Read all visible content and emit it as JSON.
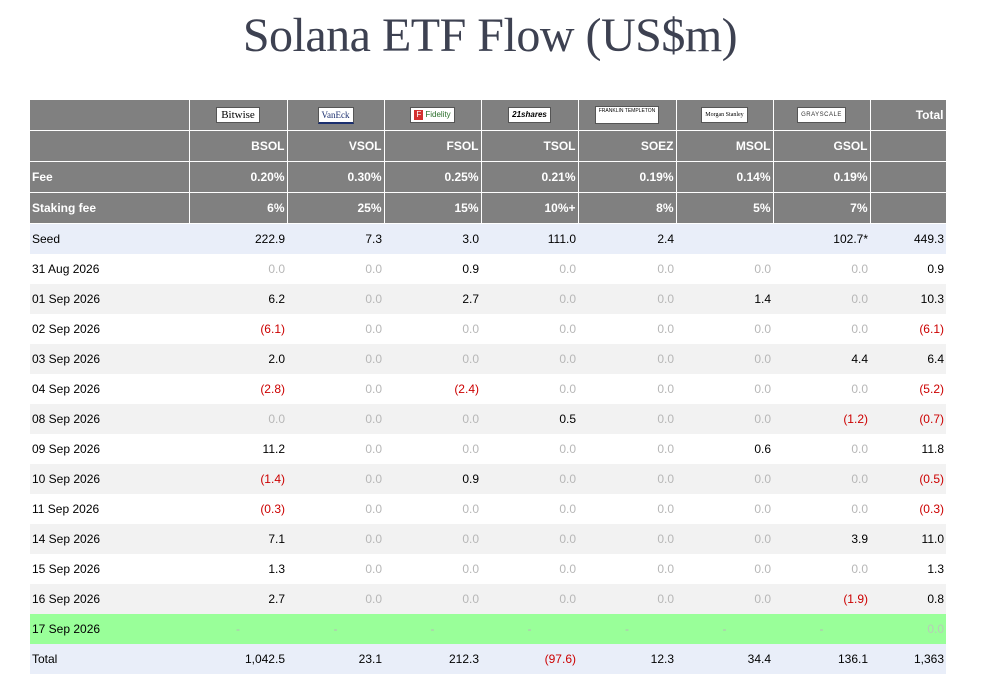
{
  "title": "Solana ETF Flow (US$m)",
  "chart_data": {
    "type": "table",
    "funds": [
      {
        "issuer": "Bitwise",
        "ticker": "BSOL",
        "fee": "0.20%",
        "staking_fee": "6%"
      },
      {
        "issuer": "VanEck",
        "ticker": "VSOL",
        "fee": "0.30%",
        "staking_fee": "25%"
      },
      {
        "issuer": "Fidelity",
        "ticker": "FSOL",
        "fee": "0.25%",
        "staking_fee": "15%"
      },
      {
        "issuer": "21shares",
        "ticker": "TSOL",
        "fee": "0.21%",
        "staking_fee": "10%+"
      },
      {
        "issuer": "FRANKLIN TEMPLETON",
        "ticker": "SOEZ",
        "fee": "0.19%",
        "staking_fee": "8%"
      },
      {
        "issuer": "Morgan Stanley",
        "ticker": "MSOL",
        "fee": "0.14%",
        "staking_fee": "5%"
      },
      {
        "issuer": "GRAYSCALE",
        "ticker": "GSOL",
        "fee": "0.19%",
        "staking_fee": "7%"
      }
    ],
    "total_header": "Total",
    "fee_label": "Fee",
    "staking_fee_label": "Staking fee",
    "rows": [
      {
        "label": "Seed",
        "values": [
          "222.9",
          "7.3",
          "3.0",
          "111.0",
          "2.4",
          "",
          "102.7*"
        ],
        "total": "449.3"
      },
      {
        "label": "31 Aug 2026",
        "values": [
          "0.0",
          "0.0",
          "0.9",
          "0.0",
          "0.0",
          "0.0",
          "0.0"
        ],
        "total": "0.9"
      },
      {
        "label": "01 Sep 2026",
        "values": [
          "6.2",
          "0.0",
          "2.7",
          "0.0",
          "0.0",
          "1.4",
          "0.0"
        ],
        "total": "10.3"
      },
      {
        "label": "02 Sep 2026",
        "values": [
          "(6.1)",
          "0.0",
          "0.0",
          "0.0",
          "0.0",
          "0.0",
          "0.0"
        ],
        "total": "(6.1)"
      },
      {
        "label": "03 Sep 2026",
        "values": [
          "2.0",
          "0.0",
          "0.0",
          "0.0",
          "0.0",
          "0.0",
          "4.4"
        ],
        "total": "6.4"
      },
      {
        "label": "04 Sep 2026",
        "values": [
          "(2.8)",
          "0.0",
          "(2.4)",
          "0.0",
          "0.0",
          "0.0",
          "0.0"
        ],
        "total": "(5.2)"
      },
      {
        "label": "08 Sep 2026",
        "values": [
          "0.0",
          "0.0",
          "0.0",
          "0.5",
          "0.0",
          "0.0",
          "(1.2)"
        ],
        "total": "(0.7)"
      },
      {
        "label": "09 Sep 2026",
        "values": [
          "11.2",
          "0.0",
          "0.0",
          "0.0",
          "0.0",
          "0.6",
          "0.0"
        ],
        "total": "11.8"
      },
      {
        "label": "10 Sep 2026",
        "values": [
          "(1.4)",
          "0.0",
          "0.9",
          "0.0",
          "0.0",
          "0.0",
          "0.0"
        ],
        "total": "(0.5)"
      },
      {
        "label": "11 Sep 2026",
        "values": [
          "(0.3)",
          "0.0",
          "0.0",
          "0.0",
          "0.0",
          "0.0",
          "0.0"
        ],
        "total": "(0.3)"
      },
      {
        "label": "14 Sep 2026",
        "values": [
          "7.1",
          "0.0",
          "0.0",
          "0.0",
          "0.0",
          "0.0",
          "3.9"
        ],
        "total": "11.0"
      },
      {
        "label": "15 Sep 2026",
        "values": [
          "1.3",
          "0.0",
          "0.0",
          "0.0",
          "0.0",
          "0.0",
          "0.0"
        ],
        "total": "1.3"
      },
      {
        "label": "16 Sep 2026",
        "values": [
          "2.7",
          "0.0",
          "0.0",
          "0.0",
          "0.0",
          "0.0",
          "(1.9)"
        ],
        "total": "0.8"
      },
      {
        "label": "17 Sep 2026",
        "values": [
          "-",
          "-",
          "-",
          "-",
          "-",
          "-",
          "-"
        ],
        "total": "0.0",
        "highlight": true
      }
    ],
    "total_row": {
      "label": "Total",
      "values": [
        "1,042.5",
        "23.1",
        "212.3",
        "(97.6)",
        "12.3",
        "34.4",
        "136.1"
      ],
      "total": "1,363"
    }
  },
  "colors": {
    "header_bg": "#808080",
    "seed_bg": "#e9eef9",
    "highlight_bg": "#99ff99",
    "negative": "#cc0000",
    "zero": "#b7b7b7",
    "title": "#3d4151"
  }
}
